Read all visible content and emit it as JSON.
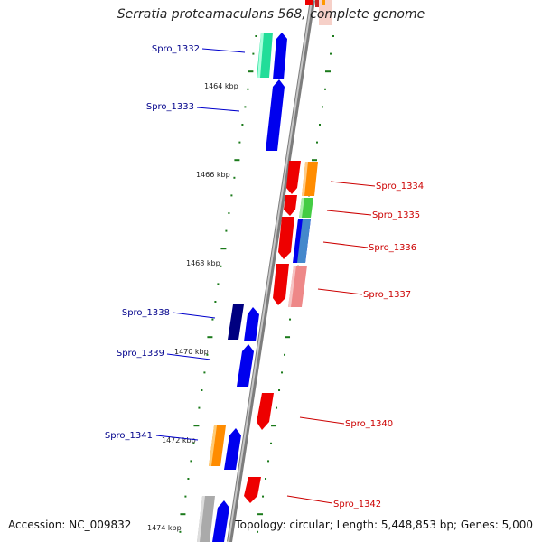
{
  "title": "Serratia proteamaculans 568, complete genome",
  "accession": "Accession: NC_009832",
  "summary": "Topology: circular; Length: 5,448,853 bp; Genes: 5,000",
  "colors": {
    "left_label": "#00008b",
    "right_label": "#cc0000",
    "tick": "#1a7a1a",
    "backbone": "#8a8a8a"
  },
  "ruler_labels": [
    "1464 kbp",
    "1466 kbp",
    "1468 kbp",
    "1470 kbp",
    "1472 kbp",
    "1474 kbp"
  ],
  "genes_left": [
    {
      "label": "Spro_1332",
      "color": "#0000ee"
    },
    {
      "label": "Spro_1333",
      "color": "#0000ee"
    },
    {
      "label": "Spro_1338",
      "color": "#0000ee"
    },
    {
      "label": "Spro_1339",
      "color": "#0000ee"
    },
    {
      "label": "Spro_1341",
      "color": "#0000ee"
    }
  ],
  "genes_right": [
    {
      "label": "Spro_1334",
      "color": "#ee0000"
    },
    {
      "label": "Spro_1335",
      "color": "#ee0000"
    },
    {
      "label": "Spro_1336",
      "color": "#ee0000"
    },
    {
      "label": "Spro_1337",
      "color": "#ee0000"
    },
    {
      "label": "Spro_1340",
      "color": "#ee0000"
    },
    {
      "label": "Spro_1342",
      "color": "#ee0000"
    }
  ],
  "cog_colors": [
    "#22dd99",
    "#000080",
    "#ff8c00",
    "#44cc44",
    "#4488cc",
    "#ee8888",
    "#aaaaaa"
  ]
}
